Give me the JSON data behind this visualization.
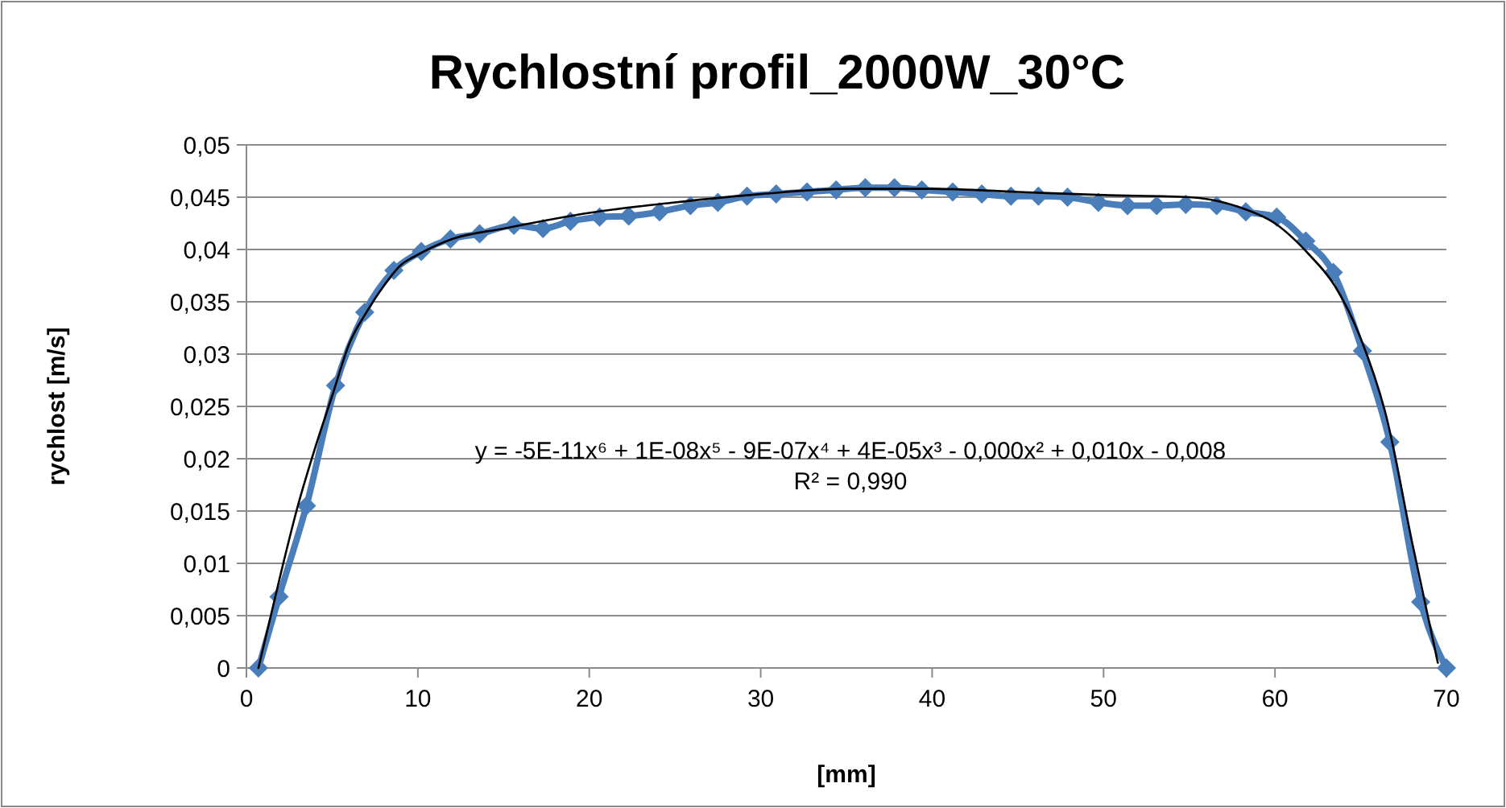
{
  "chart_data": {
    "type": "line",
    "title": "Rychlostní profil_2000W_30°C",
    "xlabel": "[mm]",
    "ylabel": "rychlost [m/s]",
    "annotations": [
      "y = -5E-11x⁶ + 1E-08x⁵ - 9E-07x⁴ + 4E-05x³ - 0,000x² + 0,010x - 0,008",
      "R² = 0,990"
    ],
    "x": [
      0.7,
      1.9,
      3.5,
      5.2,
      6.9,
      8.6,
      10.2,
      11.9,
      13.6,
      15.6,
      17.3,
      18.9,
      20.6,
      22.3,
      24.1,
      25.9,
      27.5,
      29.2,
      30.9,
      32.7,
      34.4,
      36.1,
      37.8,
      39.4,
      41.2,
      42.9,
      44.6,
      46.2,
      47.9,
      49.7,
      51.4,
      53.1,
      54.8,
      56.6,
      58.3,
      60.1,
      61.8,
      63.4,
      65.1,
      66.7,
      68.5,
      70
    ],
    "series": [
      {
        "color": "#4a7ebb",
        "marker": "diamond",
        "values": [
          0,
          0.0068,
          0.0155,
          0.027,
          0.034,
          0.038,
          0.0398,
          0.041,
          0.0415,
          0.0423,
          0.042,
          0.0427,
          0.0431,
          0.0432,
          0.0436,
          0.0442,
          0.0445,
          0.0451,
          0.0453,
          0.0455,
          0.0457,
          0.0459,
          0.0459,
          0.0457,
          0.0455,
          0.0453,
          0.0451,
          0.0451,
          0.045,
          0.0445,
          0.0442,
          0.0442,
          0.0443,
          0.0442,
          0.0436,
          0.0431,
          0.0408,
          0.0378,
          0.0303,
          0.0216,
          0.0063,
          0
        ]
      },
      {
        "color": "#000000",
        "marker": "none",
        "x": [
          0.7,
          2,
          3,
          4,
          5,
          6,
          7,
          8,
          9,
          10,
          12,
          15,
          20,
          25,
          30,
          35,
          40,
          45,
          50,
          55,
          58,
          60,
          62,
          63.5,
          65,
          66.5,
          68,
          69.5
        ],
        "values": [
          0,
          0.009,
          0.0155,
          0.021,
          0.026,
          0.031,
          0.034,
          0.0365,
          0.0385,
          0.0395,
          0.041,
          0.042,
          0.0435,
          0.0445,
          0.0453,
          0.0458,
          0.0458,
          0.0455,
          0.0452,
          0.045,
          0.044,
          0.0425,
          0.0395,
          0.0365,
          0.0315,
          0.024,
          0.012,
          0.0005
        ]
      }
    ],
    "xlim": [
      0,
      70
    ],
    "xticks": [
      0,
      10,
      20,
      30,
      40,
      50,
      60,
      70
    ],
    "ylim": [
      0,
      0.05
    ],
    "yticks": [
      {
        "value": 0,
        "label": "0"
      },
      {
        "value": 0.005,
        "label": "0,005"
      },
      {
        "value": 0.01,
        "label": "0,01"
      },
      {
        "value": 0.015,
        "label": "0,015"
      },
      {
        "value": 0.02,
        "label": "0,02"
      },
      {
        "value": 0.025,
        "label": "0,025"
      },
      {
        "value": 0.03,
        "label": "0,03"
      },
      {
        "value": 0.035,
        "label": "0,035"
      },
      {
        "value": 0.04,
        "label": "0,04"
      },
      {
        "value": 0.045,
        "label": "0,045"
      },
      {
        "value": 0.05,
        "label": "0,05"
      }
    ],
    "grid": "y"
  }
}
